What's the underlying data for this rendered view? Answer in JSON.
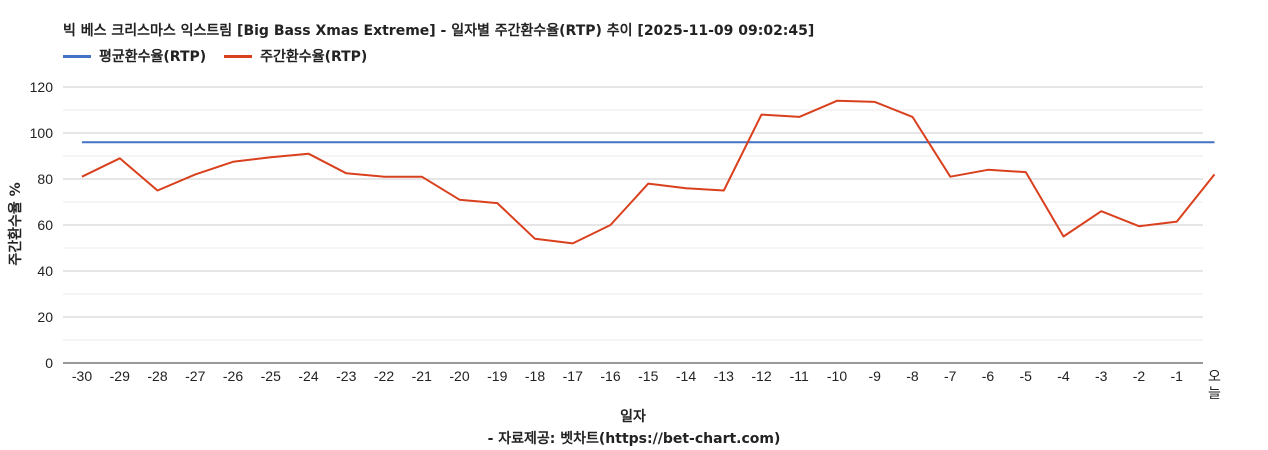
{
  "chart_data": {
    "type": "line",
    "title": "빅 베스 크리스마스 익스트림 [Big Bass Xmas Extreme] - 일자별 주간환수율(RTP) 추이 [2025-11-09 09:02:45]",
    "xlabel": "일자",
    "ylabel": "주간환수율 %",
    "footnote": "- 자료제공: 벳차트(https://bet-chart.com)",
    "ylim": [
      0,
      120
    ],
    "yticks": [
      0,
      20,
      40,
      60,
      80,
      100,
      120
    ],
    "grid": true,
    "legend_position": "top-left",
    "categories": [
      "-30",
      "-29",
      "-28",
      "-27",
      "-26",
      "-25",
      "-24",
      "-23",
      "-22",
      "-21",
      "-20",
      "-19",
      "-18",
      "-17",
      "-16",
      "-15",
      "-14",
      "-13",
      "-12",
      "-11",
      "-10",
      "-9",
      "-8",
      "-7",
      "-6",
      "-5",
      "-4",
      "-3",
      "-2",
      "-1",
      "오늘"
    ],
    "series": [
      {
        "name": "평균환수율(RTP)",
        "color": "#4472c4",
        "values": [
          96,
          96,
          96,
          96,
          96,
          96,
          96,
          96,
          96,
          96,
          96,
          96,
          96,
          96,
          96,
          96,
          96,
          96,
          96,
          96,
          96,
          96,
          96,
          96,
          96,
          96,
          96,
          96,
          96,
          96,
          96
        ]
      },
      {
        "name": "주간환수율(RTP)",
        "color": "#d9401e",
        "values": [
          81,
          89,
          75,
          82,
          87.5,
          89.5,
          91,
          82.5,
          81,
          81,
          71,
          69.5,
          54,
          52,
          60,
          78,
          76,
          75,
          108,
          107,
          114,
          113.5,
          107,
          81,
          84,
          83,
          55,
          66,
          59.5,
          61.5,
          82
        ]
      }
    ]
  }
}
